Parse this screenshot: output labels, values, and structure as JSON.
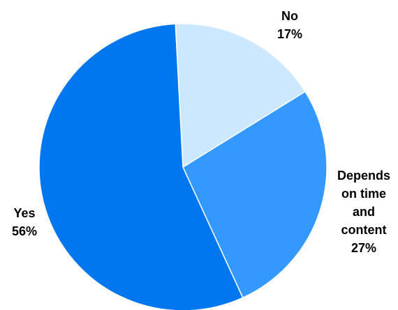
{
  "chart_data": {
    "type": "pie",
    "title": "",
    "slices": [
      {
        "label_lines": [
          "No",
          "17%"
        ],
        "value": 17,
        "color": "#CCE8FF"
      },
      {
        "label_lines": [
          "Depends",
          "on time",
          "and",
          "content",
          "27%"
        ],
        "value": 27,
        "color": "#3399FF"
      },
      {
        "label_lines": [
          "Yes",
          "56%"
        ],
        "value": 56,
        "color": "#0077EE"
      }
    ],
    "start_angle_deg": -3,
    "direction": "clockwise",
    "slice_border_color": "#FFFFFF",
    "legend": "none",
    "data_labels": "outside"
  }
}
